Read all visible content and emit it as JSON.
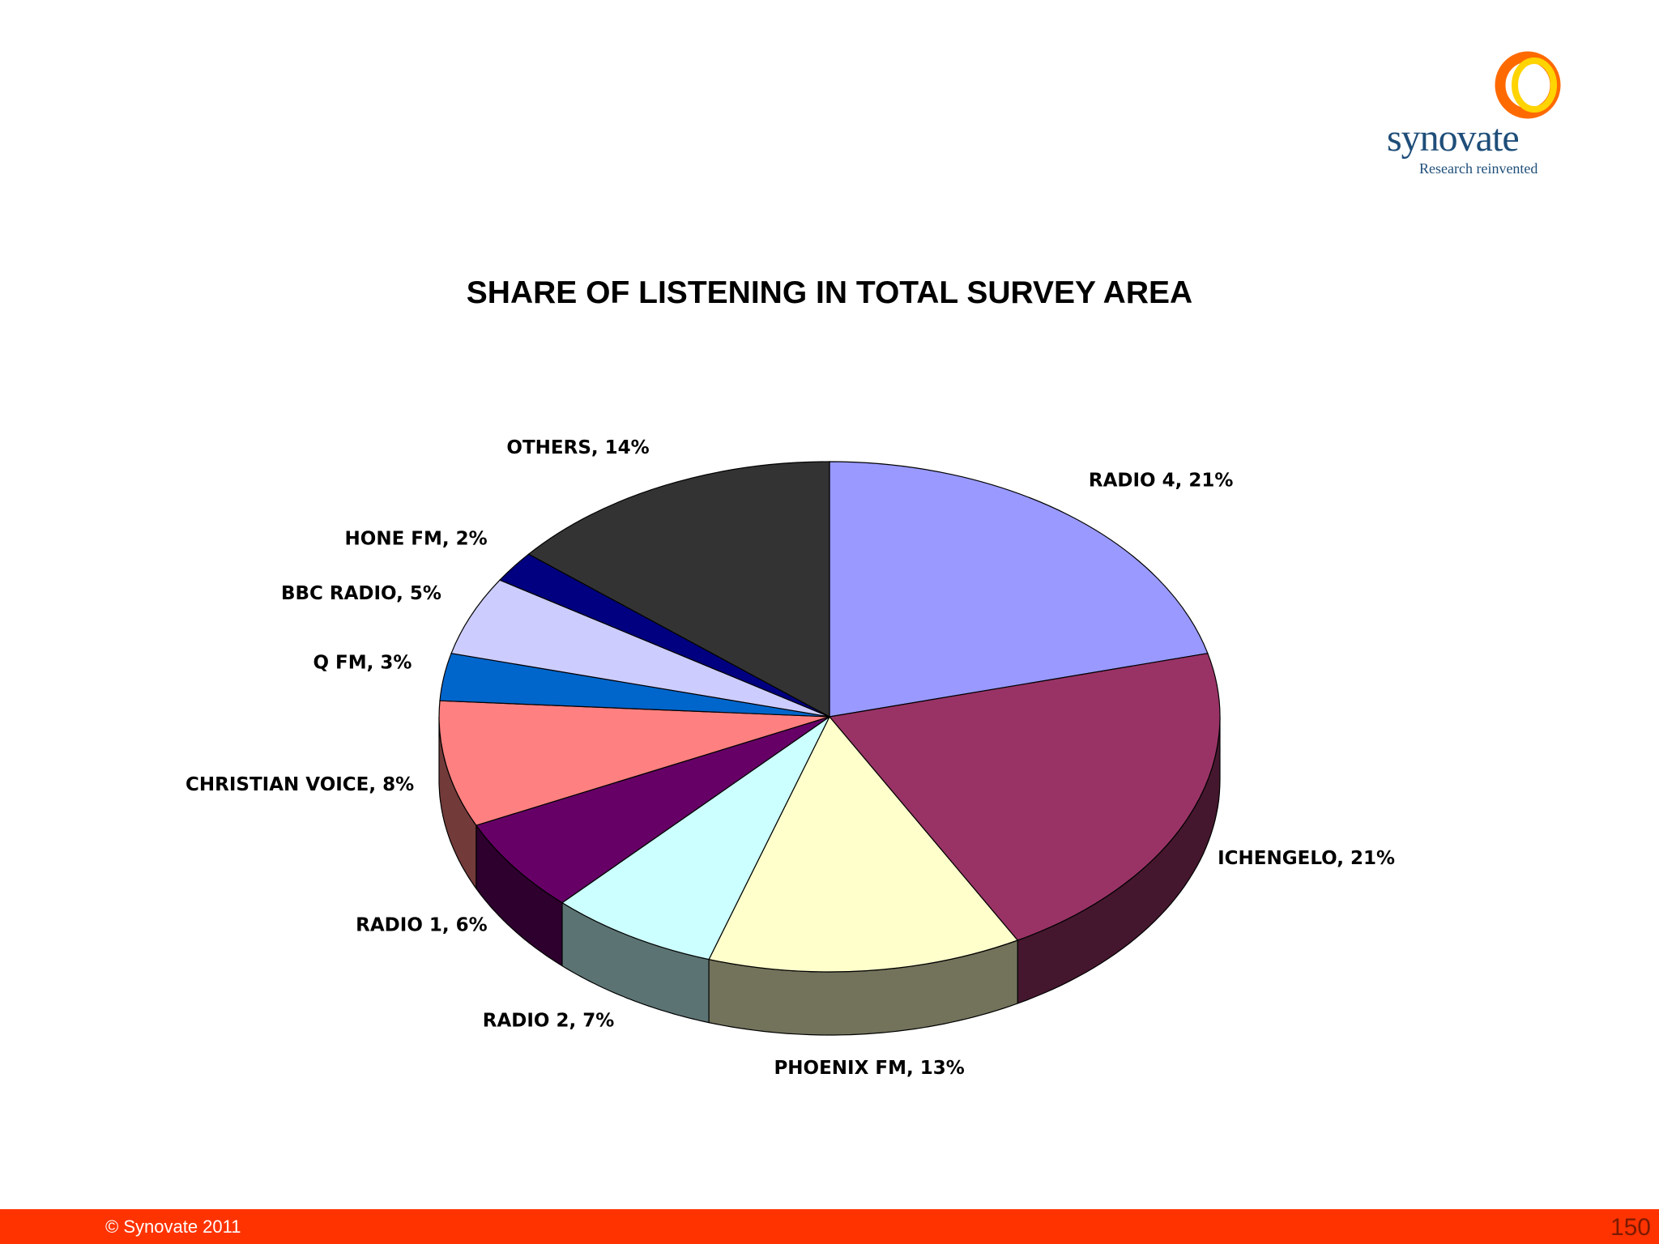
{
  "brand": {
    "name": "synovate",
    "tagline": "Research reinvented",
    "icon": "ring-logo-icon",
    "colors": {
      "ring_outer": "#ff6a00",
      "ring_inner": "#ffd400",
      "text": "#1f4e79"
    }
  },
  "slide": {
    "title": "SHARE OF LISTENING  IN TOTAL SURVEY AREA"
  },
  "chart_data": {
    "type": "pie",
    "title": "SHARE OF LISTENING  IN TOTAL SURVEY AREA",
    "slices": [
      {
        "label": "RADIO 4, 21%",
        "value": 21,
        "color": "#9999ff"
      },
      {
        "label": "ICHENGELO, 21%",
        "value": 21,
        "color": "#993366"
      },
      {
        "label": "PHOENIX FM, 13%",
        "value": 13,
        "color": "#ffffcc"
      },
      {
        "label": "RADIO 2, 7%",
        "value": 7,
        "color": "#ccffff"
      },
      {
        "label": "RADIO 1, 6%",
        "value": 6,
        "color": "#660066"
      },
      {
        "label": "CHRISTIAN VOICE, 8%",
        "value": 8,
        "color": "#ff8080"
      },
      {
        "label": "Q FM, 3%",
        "value": 3,
        "color": "#0066cc"
      },
      {
        "label": "BBC RADIO, 5%",
        "value": 5,
        "color": "#ccccff"
      },
      {
        "label": "HONE FM, 2%",
        "value": 2,
        "color": "#000080"
      },
      {
        "label": "OTHERS, 14%",
        "value": 14,
        "color": "#333333"
      }
    ],
    "style": "3d-pie",
    "legend": "none"
  },
  "footer": {
    "copyright": "© Synovate 2011",
    "page_number": "150",
    "color": "#ff3300"
  }
}
